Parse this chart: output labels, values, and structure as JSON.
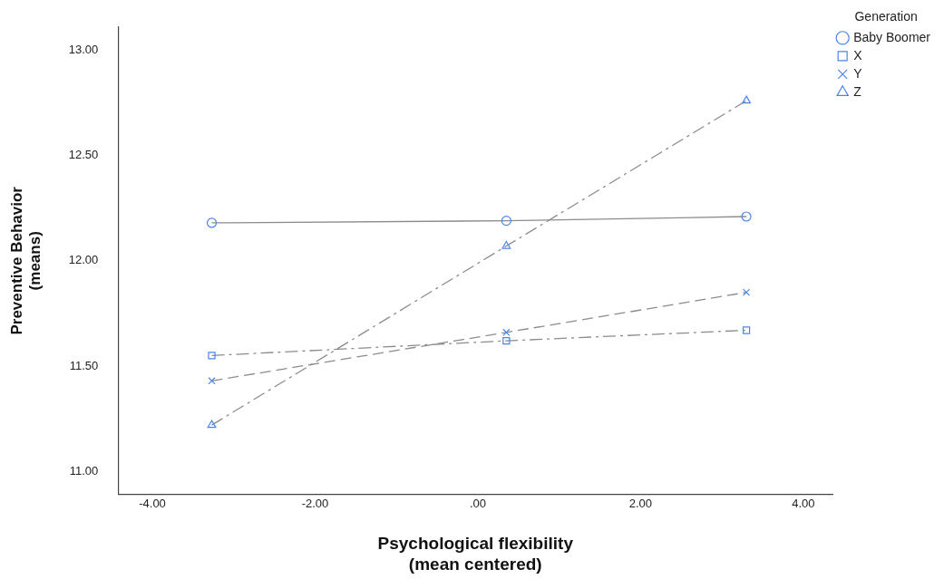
{
  "chart_data": {
    "type": "line",
    "xlabel": "Psychological flexibility\n(mean centered)",
    "ylabel": "Preventive Behavior\n(means)",
    "legend_title": "Generation",
    "legend": "top right",
    "grid": false,
    "series": [
      {
        "name": "Baby Boomer",
        "color": "#4a86e8",
        "marker": "circle",
        "line_style": "solid",
        "x": [
          -3.27,
          0.35,
          3.3
        ],
        "values": [
          12.18,
          12.19,
          12.21
        ]
      },
      {
        "name": "X",
        "color": "#4a86e8",
        "marker": "square",
        "line_style": "dashdot",
        "x": [
          -3.27,
          0.35,
          3.3
        ],
        "values": [
          11.55,
          11.62,
          11.67
        ]
      },
      {
        "name": "Y",
        "color": "#4a86e8",
        "marker": "cross",
        "line_style": "dashed",
        "x": [
          -3.27,
          0.35,
          3.3
        ],
        "values": [
          11.43,
          11.66,
          11.85
        ]
      },
      {
        "name": "Z",
        "color": "#4a86e8",
        "marker": "triangle",
        "line_style": "dashdot",
        "x": [
          -3.27,
          0.35,
          3.3
        ],
        "values": [
          11.22,
          12.07,
          12.76
        ]
      }
    ],
    "xlim": [
      -4.42,
      4.36
    ],
    "xticks": [
      {
        "value": -4,
        "label": "-4.00"
      },
      {
        "value": -2,
        "label": "-2.00"
      },
      {
        "value": 0,
        "label": ".00"
      },
      {
        "value": 2,
        "label": "2.00"
      },
      {
        "value": 4,
        "label": "4.00"
      }
    ],
    "ylim": [
      10.89,
      13.11
    ],
    "yticks": [
      {
        "value": 11,
        "label": "11.00"
      },
      {
        "value": 11.5,
        "label": "11.50"
      },
      {
        "value": 12,
        "label": "12.00"
      },
      {
        "value": 12.5,
        "label": "12.50"
      },
      {
        "value": 13,
        "label": "13.00"
      }
    ]
  }
}
